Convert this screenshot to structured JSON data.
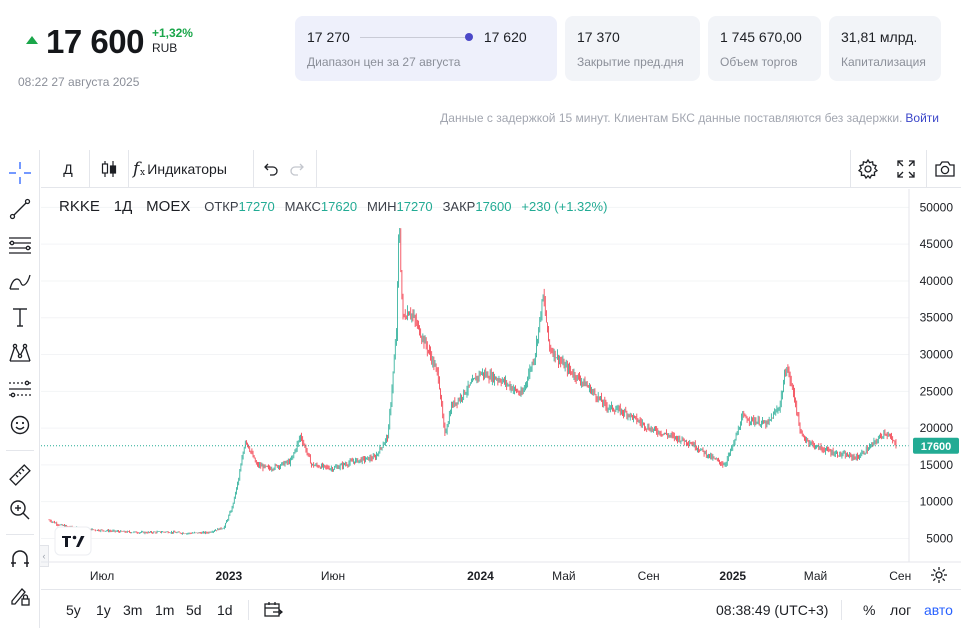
{
  "quote": {
    "price": "17 600",
    "change_pct": "+1,32%",
    "currency": "RUB",
    "timestamp": "08:22 27 августа 2025",
    "arrow_color": "#1aa64a"
  },
  "stats": {
    "range_low": "17 270",
    "range_high": "17 620",
    "range_label": "Диапазон цен за 27 августа",
    "prev_close": "17 370",
    "prev_close_label": "Закрытие пред.дня",
    "volume": "1 745 670,00",
    "volume_label": "Объем торгов",
    "cap": "31,81 млрд.",
    "cap_label": "Капитализация"
  },
  "delay_note": {
    "text": "Данные с задержкой 15 минут. Клиентам БКС данные поставляются без задержки.",
    "login": "Войти"
  },
  "toolbar": {
    "interval": "Д",
    "chart_type_icon": "candles-icon",
    "indicators": "Индикаторы",
    "indicators_icon": "fx-icon",
    "undo_icon": "undo-icon",
    "redo_icon": "redo-icon",
    "settings_icon": "gear-icon",
    "fullscreen_icon": "fullscreen-icon",
    "snapshot_icon": "camera-icon"
  },
  "left_tools": [
    "crosshair-icon",
    "trend-line-icon",
    "fib-lines-icon",
    "brush-icon",
    "text-icon",
    "pattern-icon",
    "prediction-icon",
    "emoji-icon",
    "ruler-icon",
    "zoom-in-icon",
    "magnet-icon",
    "lock-pencil-icon"
  ],
  "legend": {
    "symbol": "RKKE",
    "interval": "1Д",
    "exchange": "MOEX",
    "open_label": "ОТКР",
    "open": "17270",
    "high_label": "МАКС",
    "high": "17620",
    "low_label": "МИН",
    "low": "17270",
    "close_label": "ЗАКР",
    "close": "17600",
    "change": "+230 (+1.32%)"
  },
  "bottom_bar": {
    "ranges": [
      "5y",
      "1y",
      "3m",
      "1m",
      "5d",
      "1d"
    ],
    "goto_icon": "calendar-goto-icon",
    "time": "08:38:49 (UTC+3)",
    "percent": "%",
    "log": "лог",
    "auto": "авто"
  },
  "chart_data": {
    "type": "candlestick",
    "symbol": "RKKE",
    "last_price": 17600,
    "last_price_label": "17600",
    "up_color": "#22ab94",
    "down_color": "#f23645",
    "y_ticks": [
      5000,
      10000,
      15000,
      20000,
      25000,
      30000,
      35000,
      40000,
      45000,
      50000
    ],
    "y_tick_labels": [
      "5000",
      "10000",
      "15000",
      "20000",
      "25000",
      "30000",
      "35000",
      "40000",
      "45000",
      "50000"
    ],
    "ylim": [
      1800,
      52500
    ],
    "x_ticks": [
      {
        "label": "Июл",
        "date": "2022-07-01"
      },
      {
        "label": "2023",
        "date": "2023-01-01"
      },
      {
        "label": "Июн",
        "date": "2023-06-01"
      },
      {
        "label": "2024",
        "date": "2024-01-01"
      },
      {
        "label": "Май",
        "date": "2024-05-01"
      },
      {
        "label": "Сен",
        "date": "2024-09-01"
      },
      {
        "label": "2025",
        "date": "2025-01-01"
      },
      {
        "label": "Май",
        "date": "2025-05-01"
      },
      {
        "label": "Сен",
        "date": "2025-09-01"
      }
    ],
    "x_range": [
      "2022-04-15",
      "2025-09-05"
    ],
    "series": [
      {
        "name": "",
        "points": [
          [
            "2022-04-15",
            7500
          ],
          [
            "2022-05-01",
            6800
          ],
          [
            "2022-06-01",
            6300
          ],
          [
            "2022-07-01",
            6100
          ],
          [
            "2022-08-01",
            5900
          ],
          [
            "2022-09-01",
            5800
          ],
          [
            "2022-10-01",
            5900
          ],
          [
            "2022-11-01",
            5700
          ],
          [
            "2022-12-01",
            5800
          ],
          [
            "2022-12-25",
            6500
          ],
          [
            "2023-01-05",
            9000
          ],
          [
            "2023-01-15",
            13000
          ],
          [
            "2023-01-25",
            18500
          ],
          [
            "2023-02-10",
            15000
          ],
          [
            "2023-03-01",
            14500
          ],
          [
            "2023-04-01",
            15500
          ],
          [
            "2023-04-15",
            19000
          ],
          [
            "2023-05-01",
            15000
          ],
          [
            "2023-06-01",
            14500
          ],
          [
            "2023-07-01",
            15500
          ],
          [
            "2023-08-01",
            16000
          ],
          [
            "2023-08-20",
            19000
          ],
          [
            "2023-09-01",
            33000
          ],
          [
            "2023-09-05",
            48500
          ],
          [
            "2023-09-10",
            35000
          ],
          [
            "2023-09-20",
            36000
          ],
          [
            "2023-10-01",
            34000
          ],
          [
            "2023-10-20",
            30000
          ],
          [
            "2023-11-01",
            27000
          ],
          [
            "2023-11-10",
            19000
          ],
          [
            "2023-11-20",
            23000
          ],
          [
            "2023-12-01",
            24000
          ],
          [
            "2024-01-01",
            27500
          ],
          [
            "2024-02-01",
            26500
          ],
          [
            "2024-03-01",
            24500
          ],
          [
            "2024-03-20",
            30000
          ],
          [
            "2024-04-01",
            38000
          ],
          [
            "2024-04-10",
            31000
          ],
          [
            "2024-05-01",
            28500
          ],
          [
            "2024-06-01",
            26000
          ],
          [
            "2024-07-01",
            23000
          ],
          [
            "2024-08-01",
            22000
          ],
          [
            "2024-09-01",
            20000
          ],
          [
            "2024-10-01",
            19000
          ],
          [
            "2024-11-01",
            18000
          ],
          [
            "2024-12-01",
            16000
          ],
          [
            "2024-12-20",
            15000
          ],
          [
            "2025-01-01",
            17500
          ],
          [
            "2025-01-15",
            21500
          ],
          [
            "2025-02-01",
            21000
          ],
          [
            "2025-02-20",
            20500
          ],
          [
            "2025-03-10",
            23000
          ],
          [
            "2025-03-20",
            28500
          ],
          [
            "2025-04-01",
            24000
          ],
          [
            "2025-04-10",
            19000
          ],
          [
            "2025-05-01",
            17500
          ],
          [
            "2025-06-01",
            16500
          ],
          [
            "2025-07-01",
            16000
          ],
          [
            "2025-07-20",
            17500
          ],
          [
            "2025-08-10",
            19500
          ],
          [
            "2025-08-27",
            17600
          ]
        ]
      }
    ]
  }
}
